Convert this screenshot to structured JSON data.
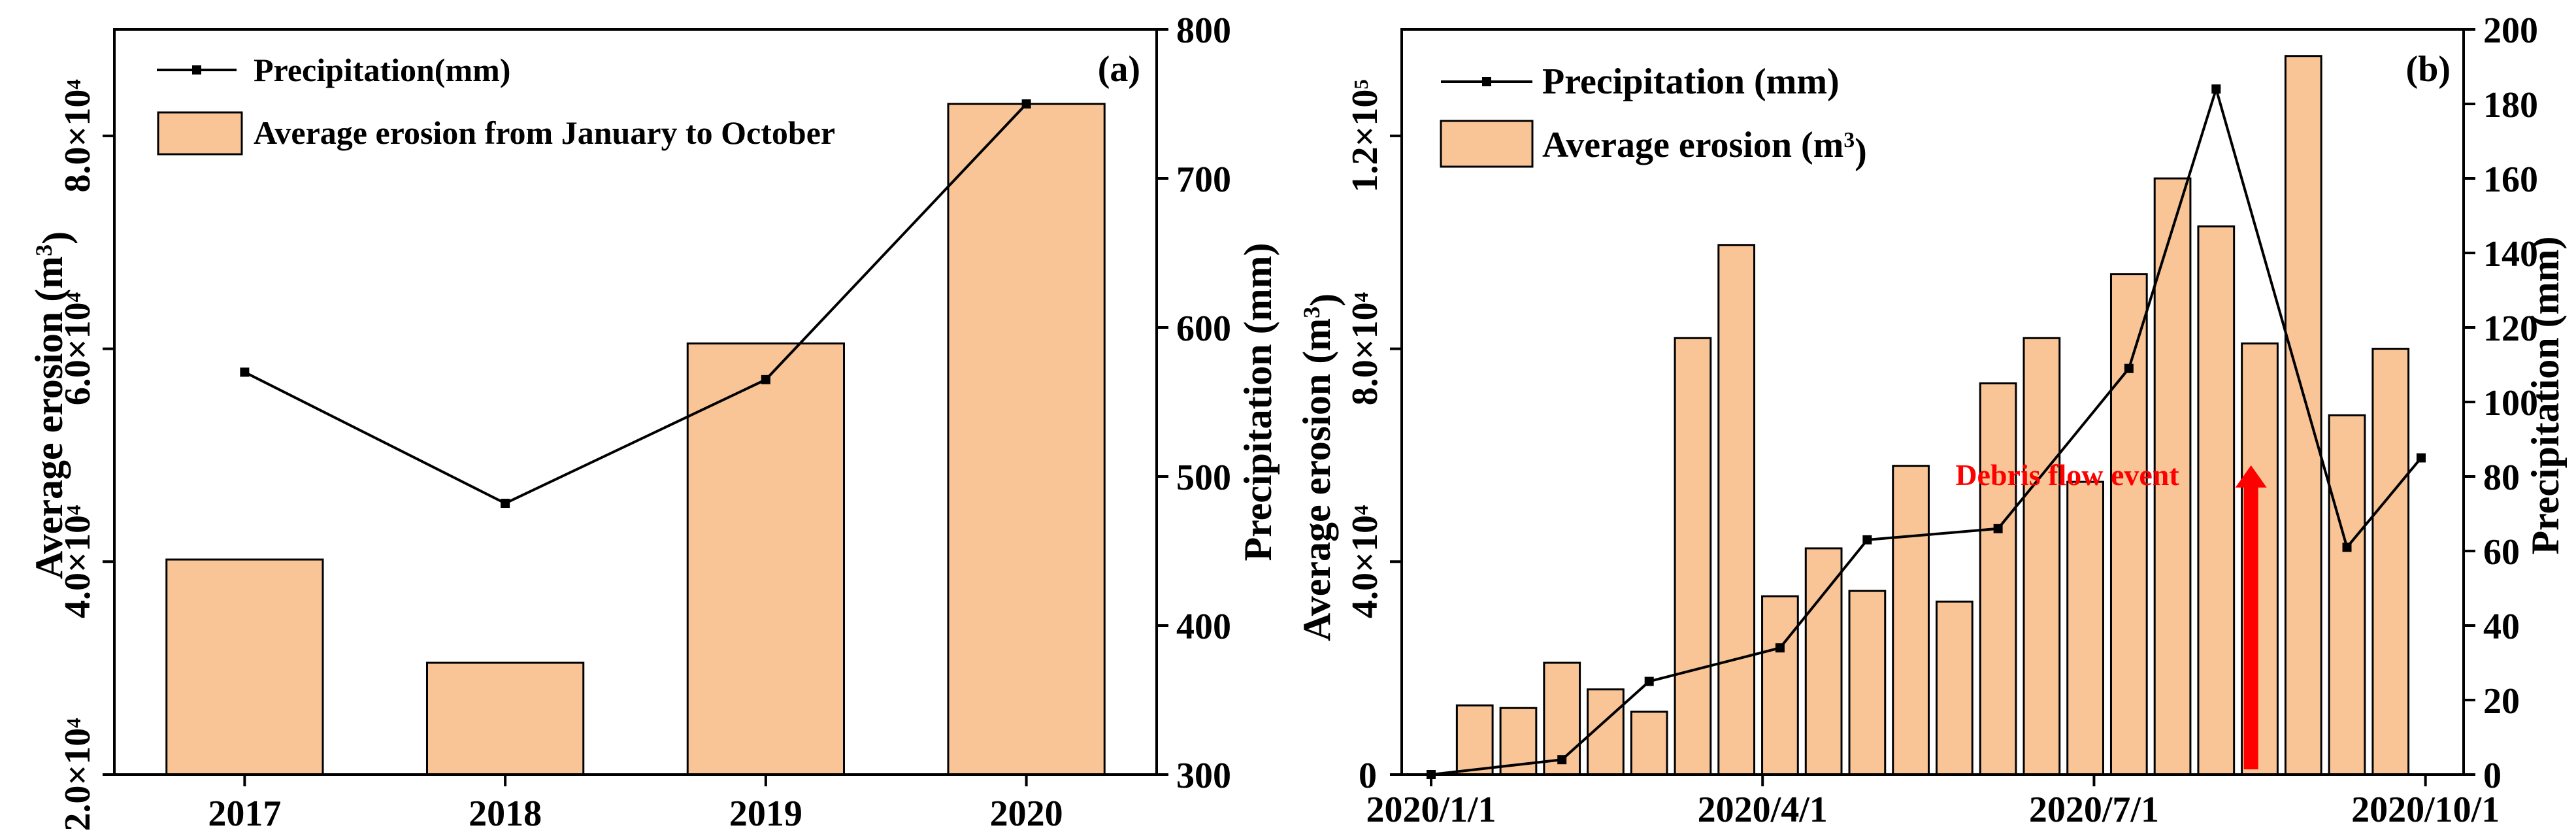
{
  "colors": {
    "bar_fill": "#F9C597",
    "bar_stroke": "#000000",
    "line": "#000000",
    "arrow": "#FF0000",
    "annotation_text": "#FF0000"
  },
  "chart_data": [
    {
      "panel": "(a)",
      "type": "bar+line",
      "categories": [
        "2017",
        "2018",
        "2019",
        "2020"
      ],
      "series": [
        {
          "name": "Average erosion from January to October",
          "type": "bar",
          "axis": "left",
          "values": [
            40200,
            30500,
            60500,
            83000
          ]
        },
        {
          "name": "Precipitation(mm)",
          "type": "line",
          "axis": "right",
          "values": [
            570,
            482,
            565,
            750
          ]
        }
      ],
      "left_axis": {
        "label_main": "Average erosion (m",
        "label_sup": "3",
        "label_end": ")",
        "range": [
          20000,
          90000
        ],
        "ticks": [
          {
            "value": 20000,
            "m": "2.0×10",
            "e": "4"
          },
          {
            "value": 40000,
            "m": "4.0×10",
            "e": "4"
          },
          {
            "value": 60000,
            "m": "6.0×10",
            "e": "4"
          },
          {
            "value": 80000,
            "m": "8.0×10",
            "e": "4"
          }
        ]
      },
      "right_axis": {
        "label": "Precipitation (mm)",
        "range": [
          300,
          800
        ],
        "ticks": [
          "300",
          "400",
          "500",
          "600",
          "700",
          "800"
        ]
      },
      "legend": {
        "line_label": "Precipitation(mm)",
        "bar_label": "Average erosion from January to October",
        "placement": "top-left"
      }
    },
    {
      "panel": "(b)",
      "type": "bar+line",
      "x_range": [
        0,
        23
      ],
      "x_ticks": [
        {
          "pos": 0,
          "label": "2020/1/1"
        },
        {
          "pos": 7.6,
          "label": "2020/4/1"
        },
        {
          "pos": 15.2,
          "label": "2020/7/1"
        },
        {
          "pos": 22.8,
          "label": "2020/10/1"
        }
      ],
      "series": [
        {
          "name": "Average erosion (m3)",
          "type": "bar",
          "axis": "left",
          "x": [
            1,
            2,
            3,
            4,
            5,
            6,
            7,
            8,
            9,
            10,
            11,
            12,
            13,
            14,
            15,
            16,
            17,
            18,
            19,
            20,
            21,
            22
          ],
          "values": [
            13000,
            12500,
            21000,
            16000,
            11800,
            82000,
            99500,
            33500,
            42500,
            34500,
            58000,
            32500,
            73500,
            82000,
            55000,
            94000,
            112000,
            103000,
            81000,
            135000,
            67500,
            80000
          ]
        },
        {
          "name": "Precipitation (mm)",
          "type": "line",
          "axis": "right",
          "x": [
            0,
            3,
            5,
            8,
            10,
            13,
            16,
            18,
            21,
            22.7
          ],
          "values": [
            0,
            4,
            25,
            34,
            63,
            66,
            109,
            184,
            61,
            85
          ]
        }
      ],
      "left_axis": {
        "label_main": "Average erosion (m",
        "label_sup": "3",
        "label_end": ")",
        "range": [
          0,
          140000
        ],
        "ticks": [
          {
            "value": 0,
            "m": "0",
            "e": ""
          },
          {
            "value": 40000,
            "m": "4.0×10",
            "e": "4"
          },
          {
            "value": 80000,
            "m": "8.0×10",
            "e": "4"
          },
          {
            "value": 120000,
            "m": "1.2×10",
            "e": "5"
          }
        ]
      },
      "right_axis": {
        "label": "Precipitation (mm)",
        "range": [
          0,
          200
        ],
        "ticks": [
          "0",
          "20",
          "40",
          "60",
          "80",
          "100",
          "120",
          "140",
          "160",
          "180",
          "200"
        ]
      },
      "legend": {
        "line_label": "Precipitation (mm)",
        "bar_label_main": "Average erosion (m",
        "bar_label_sup": "3",
        "bar_label_end": ")",
        "placement": "top-left"
      },
      "annotation": {
        "text": "Debris flow event",
        "arrow_x": 18.8,
        "arrow_from": 0,
        "arrow_to": 83
      }
    }
  ]
}
